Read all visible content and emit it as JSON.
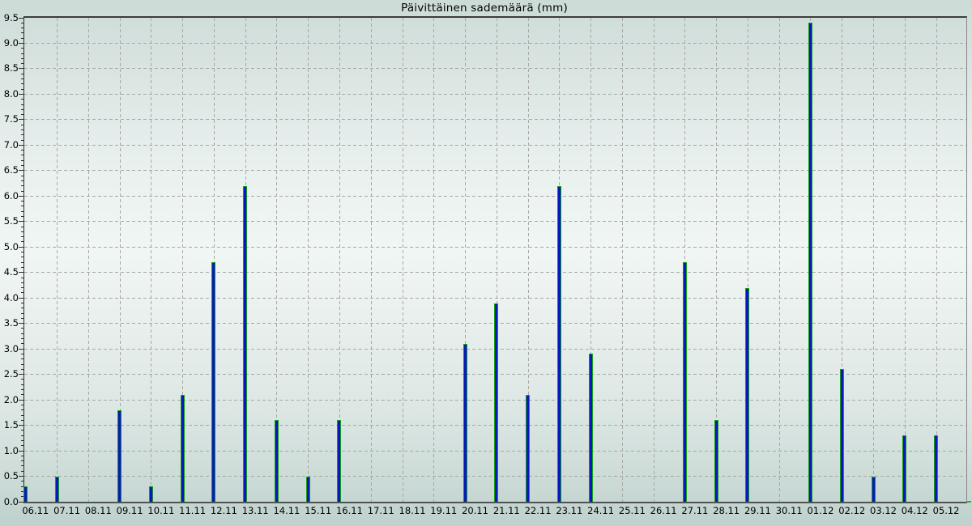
{
  "title": "Päivittäinen sademäärä (mm)",
  "chart_data": {
    "type": "bar",
    "title": "Päivittäinen sademäärä (mm)",
    "categories": [
      "06.11",
      "07.11",
      "08.11",
      "09.11",
      "10.11",
      "11.11",
      "12.11",
      "13.11",
      "14.11",
      "15.11",
      "16.11",
      "17.11",
      "18.11",
      "19.11",
      "20.11",
      "21.11",
      "22.11",
      "23.11",
      "24.11",
      "25.11",
      "26.11",
      "27.11",
      "28.11",
      "29.11",
      "30.11",
      "01.12",
      "02.12",
      "03.12",
      "04.12",
      "05.12"
    ],
    "values": [
      0.3,
      0.5,
      0.0,
      1.8,
      0.3,
      2.1,
      4.7,
      6.2,
      1.6,
      0.5,
      1.6,
      0.0,
      0.0,
      0.0,
      3.1,
      3.9,
      2.1,
      6.2,
      2.9,
      0.0,
      0.0,
      4.7,
      1.6,
      4.2,
      0.0,
      9.4,
      2.6,
      0.5,
      1.3,
      1.3
    ],
    "xlabel": "",
    "ylabel": "",
    "ylim": [
      0,
      9.5
    ],
    "ytick_step": 0.5,
    "ytick_minor_step": 0.1,
    "ytick_labels": [
      "0.0",
      "0.5",
      "1.0",
      "1.5",
      "2.0",
      "2.5",
      "3.0",
      "3.5",
      "4.0",
      "4.5",
      "5.0",
      "5.5",
      "6.0",
      "6.5",
      "7.0",
      "7.5",
      "8.0",
      "8.5",
      "9.0",
      "9.5"
    ],
    "grid": "dashed",
    "legend": "none",
    "colors": {
      "bar_fill": "#0b16c4",
      "bar_edge": "#12a012",
      "gridline": "#a8a8a8",
      "axis_dark": "#3d3d3d",
      "axis_light": "#858585",
      "background_top": "#ccdbd7",
      "background_middle": "#f0f6f4",
      "background_bottom": "#bed1cc",
      "baseline_end_green": "#3aaa35"
    }
  }
}
